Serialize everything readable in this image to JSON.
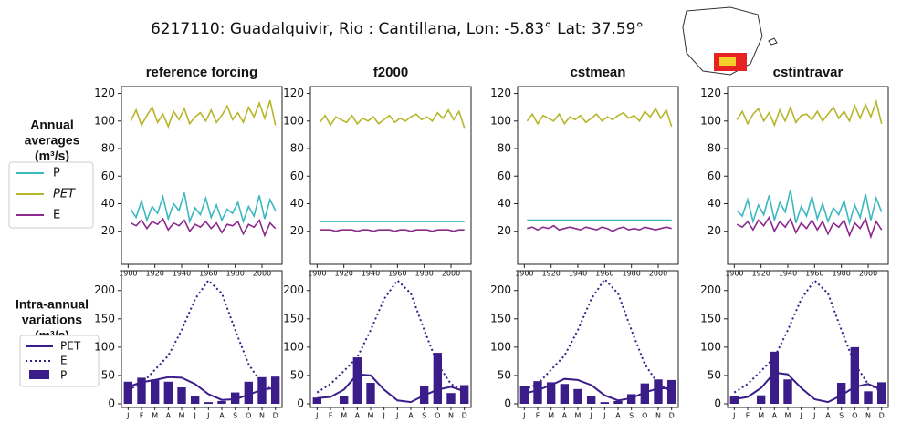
{
  "title": "6217110: Guadalquivir, Rio : Cantillana, Lon: -5.83° Lat: 37.59°",
  "row_labels": [
    [
      "Annual",
      "averages",
      "(m³/s)"
    ],
    [
      "Intra-annual",
      "variations",
      "(m³/s)"
    ]
  ],
  "chart_data": [
    {
      "type": "line",
      "title": "reference forcing",
      "xlim": [
        1895,
        2015
      ],
      "xticks": [
        1900,
        1920,
        1940,
        1960,
        1980,
        2000
      ],
      "ylim": [
        -4,
        125
      ],
      "yticks": [
        20,
        40,
        60,
        80,
        100,
        120
      ],
      "x": [
        1902,
        1906,
        1910,
        1914,
        1918,
        1922,
        1926,
        1930,
        1934,
        1938,
        1942,
        1946,
        1950,
        1954,
        1958,
        1962,
        1966,
        1970,
        1974,
        1978,
        1982,
        1986,
        1990,
        1994,
        1998,
        2002,
        2006,
        2010
      ],
      "series": [
        {
          "name": "P",
          "color": "#3cb8c0",
          "values": [
            36,
            30,
            42,
            28,
            38,
            33,
            45,
            29,
            40,
            35,
            48,
            27,
            37,
            32,
            44,
            30,
            39,
            28,
            36,
            33,
            41,
            27,
            38,
            31,
            46,
            29,
            43,
            35
          ]
        },
        {
          "name": "PET",
          "color": "#b7b52a",
          "values": [
            100,
            108,
            97,
            104,
            110,
            99,
            105,
            96,
            107,
            101,
            109,
            98,
            103,
            106,
            100,
            108,
            99,
            104,
            111,
            101,
            106,
            99,
            110,
            103,
            113,
            102,
            115,
            97
          ]
        },
        {
          "name": "E",
          "color": "#8b2a8c",
          "values": [
            26,
            24,
            28,
            22,
            27,
            25,
            29,
            21,
            26,
            24,
            28,
            20,
            25,
            23,
            27,
            22,
            26,
            19,
            25,
            24,
            27,
            18,
            25,
            23,
            28,
            17,
            26,
            22
          ]
        }
      ]
    },
    {
      "type": "line",
      "title": "f2000",
      "xlim": [
        1895,
        2015
      ],
      "xticks": [
        1900,
        1920,
        1940,
        1960,
        1980,
        2000
      ],
      "ylim": [
        -4,
        125
      ],
      "yticks": [
        20,
        40,
        60,
        80,
        100,
        120
      ],
      "x": [
        1902,
        1906,
        1910,
        1914,
        1918,
        1922,
        1926,
        1930,
        1934,
        1938,
        1942,
        1946,
        1950,
        1954,
        1958,
        1962,
        1966,
        1970,
        1974,
        1978,
        1982,
        1986,
        1990,
        1994,
        1998,
        2002,
        2006,
        2010
      ],
      "series": [
        {
          "name": "P",
          "color": "#3cb8c0",
          "values": [
            27,
            27,
            27,
            27,
            27,
            27,
            27,
            27,
            27,
            27,
            27,
            27,
            27,
            27,
            27,
            27,
            27,
            27,
            27,
            27,
            27,
            27,
            27,
            27,
            27,
            27,
            27,
            27
          ]
        },
        {
          "name": "PET",
          "color": "#b7b52a",
          "values": [
            99,
            104,
            97,
            103,
            101,
            99,
            104,
            98,
            102,
            100,
            103,
            98,
            101,
            104,
            99,
            102,
            100,
            103,
            105,
            101,
            103,
            100,
            106,
            102,
            108,
            101,
            107,
            95
          ]
        },
        {
          "name": "E",
          "color": "#8b2a8c",
          "values": [
            21,
            21,
            21,
            20,
            21,
            21,
            21,
            20,
            21,
            21,
            20,
            21,
            21,
            21,
            20,
            21,
            21,
            20,
            21,
            21,
            21,
            20,
            21,
            21,
            21,
            20,
            21,
            21
          ]
        }
      ]
    },
    {
      "type": "line",
      "title": "cstmean",
      "xlim": [
        1895,
        2015
      ],
      "xticks": [
        1900,
        1920,
        1940,
        1960,
        1980,
        2000
      ],
      "ylim": [
        -4,
        125
      ],
      "yticks": [
        20,
        40,
        60,
        80,
        100,
        120
      ],
      "x": [
        1902,
        1906,
        1910,
        1914,
        1918,
        1922,
        1926,
        1930,
        1934,
        1938,
        1942,
        1946,
        1950,
        1954,
        1958,
        1962,
        1966,
        1970,
        1974,
        1978,
        1982,
        1986,
        1990,
        1994,
        1998,
        2002,
        2006,
        2010
      ],
      "series": [
        {
          "name": "P",
          "color": "#3cb8c0",
          "values": [
            28,
            28,
            28,
            28,
            28,
            28,
            28,
            28,
            28,
            28,
            28,
            28,
            28,
            28,
            28,
            28,
            28,
            28,
            28,
            28,
            28,
            28,
            28,
            28,
            28,
            28,
            28,
            28
          ]
        },
        {
          "name": "PET",
          "color": "#b7b52a",
          "values": [
            100,
            105,
            98,
            104,
            102,
            100,
            105,
            98,
            103,
            101,
            104,
            99,
            102,
            105,
            100,
            103,
            101,
            104,
            106,
            102,
            104,
            100,
            107,
            103,
            109,
            102,
            108,
            96
          ]
        },
        {
          "name": "E",
          "color": "#8b2a8c",
          "values": [
            22,
            23,
            21,
            23,
            22,
            24,
            21,
            22,
            23,
            22,
            21,
            23,
            22,
            21,
            23,
            22,
            20,
            22,
            23,
            21,
            22,
            21,
            23,
            22,
            21,
            22,
            23,
            22
          ]
        }
      ]
    },
    {
      "type": "line",
      "title": "cstintravar",
      "xlim": [
        1895,
        2015
      ],
      "xticks": [
        1900,
        1920,
        1940,
        1960,
        1980,
        2000
      ],
      "ylim": [
        -4,
        125
      ],
      "yticks": [
        20,
        40,
        60,
        80,
        100,
        120
      ],
      "x": [
        1902,
        1906,
        1910,
        1914,
        1918,
        1922,
        1926,
        1930,
        1934,
        1938,
        1942,
        1946,
        1950,
        1954,
        1958,
        1962,
        1966,
        1970,
        1974,
        1978,
        1982,
        1986,
        1990,
        1994,
        1998,
        2002,
        2006,
        2010
      ],
      "series": [
        {
          "name": "P",
          "color": "#3cb8c0",
          "values": [
            35,
            31,
            43,
            27,
            39,
            32,
            46,
            28,
            41,
            34,
            50,
            26,
            38,
            31,
            45,
            29,
            40,
            27,
            37,
            32,
            42,
            26,
            39,
            30,
            47,
            28,
            44,
            34
          ]
        },
        {
          "name": "PET",
          "color": "#b7b52a",
          "values": [
            101,
            107,
            98,
            105,
            109,
            100,
            106,
            97,
            108,
            100,
            110,
            99,
            104,
            105,
            101,
            107,
            100,
            105,
            110,
            102,
            107,
            100,
            111,
            102,
            112,
            103,
            114,
            98
          ]
        },
        {
          "name": "E",
          "color": "#8b2a8c",
          "values": [
            25,
            23,
            27,
            21,
            28,
            24,
            30,
            20,
            27,
            23,
            29,
            19,
            26,
            22,
            28,
            21,
            27,
            18,
            26,
            23,
            28,
            17,
            26,
            22,
            29,
            16,
            27,
            21
          ]
        }
      ]
    },
    {
      "type": "bar",
      "ylim": [
        0,
        235
      ],
      "yticks": [
        0,
        50,
        100,
        150,
        200
      ],
      "categories": [
        "J",
        "F",
        "M",
        "A",
        "M",
        "J",
        "J",
        "A",
        "S",
        "O",
        "N",
        "D"
      ],
      "series": [
        {
          "name": "PET",
          "color": "#3b1d8a",
          "mark": "line",
          "values": [
            30,
            38,
            42,
            47,
            46,
            35,
            17,
            7,
            8,
            16,
            25,
            28
          ]
        },
        {
          "name": "E",
          "color": "#3b1d8a",
          "mark": "dotted",
          "values": [
            25,
            35,
            60,
            85,
            130,
            185,
            218,
            195,
            130,
            70,
            35,
            22
          ]
        },
        {
          "name": "P",
          "color": "#3b1d8a",
          "mark": "bar",
          "values": [
            39,
            46,
            43,
            39,
            29,
            14,
            3,
            5,
            20,
            39,
            47,
            48
          ]
        }
      ]
    },
    {
      "type": "bar",
      "ylim": [
        0,
        235
      ],
      "yticks": [
        0,
        50,
        100,
        150,
        200
      ],
      "categories": [
        "J",
        "F",
        "M",
        "A",
        "M",
        "J",
        "J",
        "A",
        "S",
        "O",
        "N",
        "D"
      ],
      "series": [
        {
          "name": "PET",
          "color": "#3b1d8a",
          "mark": "line",
          "values": [
            10,
            12,
            25,
            52,
            50,
            25,
            6,
            3,
            15,
            25,
            30,
            22
          ]
        },
        {
          "name": "E",
          "color": "#3b1d8a",
          "mark": "dotted",
          "values": [
            20,
            35,
            58,
            82,
            130,
            185,
            218,
            195,
            130,
            70,
            35,
            22
          ]
        },
        {
          "name": "P",
          "color": "#3b1d8a",
          "mark": "bar",
          "values": [
            11,
            0,
            13,
            82,
            37,
            0,
            0,
            0,
            31,
            90,
            19,
            33
          ]
        }
      ]
    },
    {
      "type": "bar",
      "ylim": [
        0,
        235
      ],
      "yticks": [
        0,
        50,
        100,
        150,
        200
      ],
      "categories": [
        "J",
        "F",
        "M",
        "A",
        "M",
        "J",
        "J",
        "A",
        "S",
        "O",
        "N",
        "D"
      ],
      "series": [
        {
          "name": "PET",
          "color": "#3b1d8a",
          "mark": "line",
          "values": [
            18,
            24,
            33,
            44,
            42,
            33,
            15,
            6,
            10,
            20,
            27,
            28
          ]
        },
        {
          "name": "E",
          "color": "#3b1d8a",
          "mark": "dotted",
          "values": [
            25,
            35,
            60,
            85,
            130,
            185,
            220,
            195,
            130,
            70,
            35,
            22
          ]
        },
        {
          "name": "P",
          "color": "#3b1d8a",
          "mark": "bar",
          "values": [
            32,
            40,
            38,
            35,
            26,
            13,
            3,
            5,
            17,
            36,
            43,
            42
          ]
        }
      ]
    },
    {
      "type": "bar",
      "ylim": [
        0,
        235
      ],
      "yticks": [
        0,
        50,
        100,
        150,
        200
      ],
      "categories": [
        "J",
        "F",
        "M",
        "A",
        "M",
        "J",
        "J",
        "A",
        "S",
        "O",
        "N",
        "D"
      ],
      "series": [
        {
          "name": "PET",
          "color": "#3b1d8a",
          "mark": "line",
          "values": [
            8,
            12,
            28,
            55,
            52,
            28,
            8,
            3,
            15,
            30,
            35,
            25
          ]
        },
        {
          "name": "E",
          "color": "#3b1d8a",
          "mark": "dotted",
          "values": [
            20,
            35,
            58,
            82,
            130,
            185,
            218,
            195,
            130,
            70,
            35,
            22
          ]
        },
        {
          "name": "P",
          "color": "#3b1d8a",
          "mark": "bar",
          "values": [
            13,
            0,
            15,
            92,
            43,
            0,
            0,
            0,
            37,
            100,
            22,
            38
          ]
        }
      ]
    }
  ]
}
